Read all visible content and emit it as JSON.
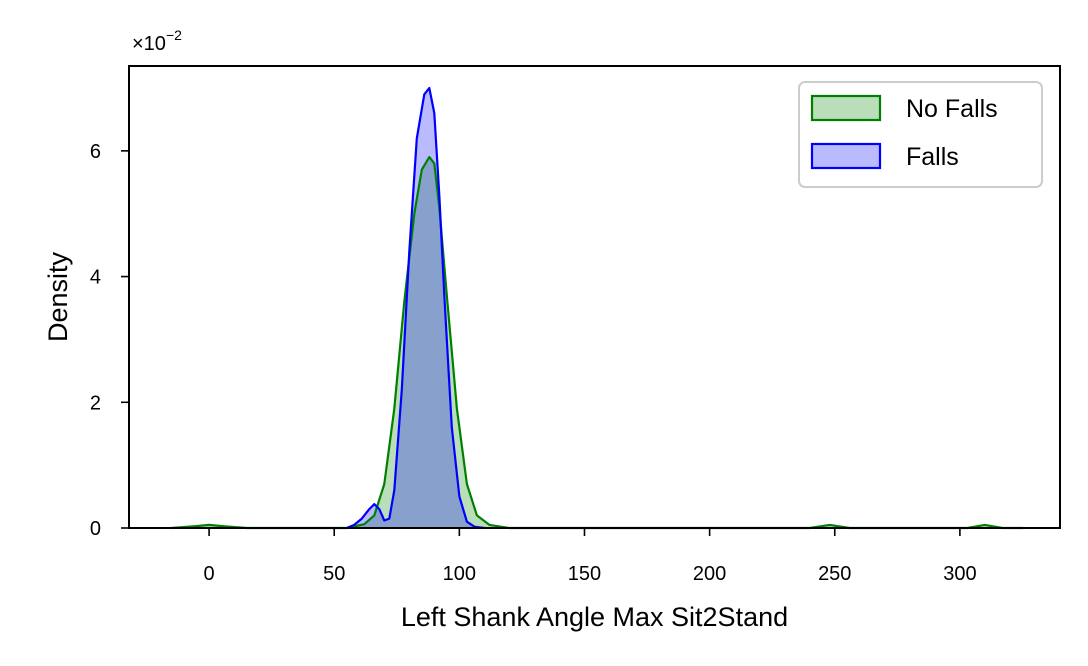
{
  "chart_data": {
    "type": "area",
    "title": "",
    "xlabel": "Left Shank Angle Max Sit2Stand",
    "ylabel": "Density",
    "y_multiplier": "×10",
    "y_multiplier_exp": "−2",
    "xlim": [
      -32,
      340
    ],
    "ylim": [
      0,
      7.35
    ],
    "x_ticks": [
      0,
      50,
      100,
      150,
      200,
      250,
      300
    ],
    "y_ticks": [
      0,
      2,
      4,
      6
    ],
    "grid": false,
    "legend_position": "top-right",
    "series": [
      {
        "name": "No Falls",
        "color": "#008000",
        "fill": "#008000",
        "x": [
          -15,
          -5,
          0,
          5,
          15,
          55,
          62,
          66,
          70,
          74,
          78,
          82,
          85,
          88,
          90,
          92,
          95,
          99,
          103,
          107,
          112,
          120,
          240,
          248,
          256,
          303,
          310,
          317,
          325
        ],
        "y": [
          0.0,
          0.03,
          0.05,
          0.03,
          0.0,
          0.0,
          0.06,
          0.2,
          0.7,
          1.9,
          3.6,
          5.0,
          5.7,
          5.9,
          5.8,
          5.1,
          3.7,
          1.9,
          0.7,
          0.2,
          0.05,
          0.0,
          0.0,
          0.05,
          0.0,
          0.0,
          0.05,
          0.0,
          0.0
        ]
      },
      {
        "name": "Falls",
        "color": "#0000ff",
        "fill": "#0000ff",
        "x": [
          55,
          58,
          61,
          64,
          66,
          68,
          70,
          72,
          74,
          77,
          80,
          83,
          86,
          88,
          90,
          92,
          94,
          97,
          100,
          103,
          106,
          110
        ],
        "y": [
          0.0,
          0.05,
          0.15,
          0.3,
          0.38,
          0.3,
          0.12,
          0.15,
          0.6,
          2.2,
          4.4,
          6.2,
          6.9,
          7.0,
          6.6,
          5.3,
          3.7,
          1.6,
          0.5,
          0.1,
          0.02,
          0.0
        ]
      }
    ]
  }
}
